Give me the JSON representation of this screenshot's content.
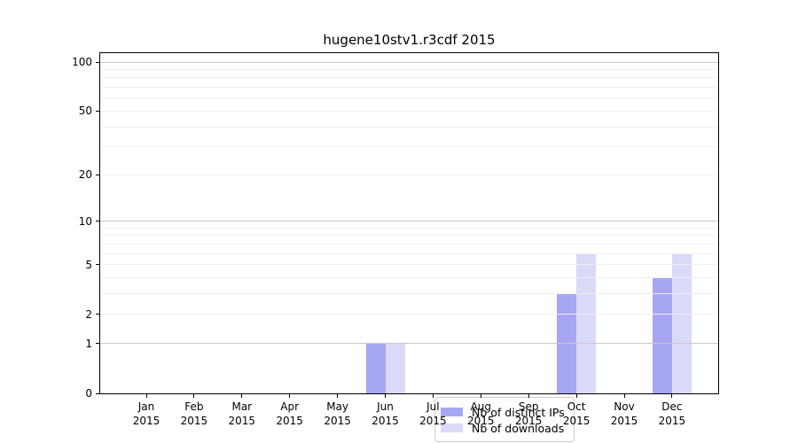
{
  "chart_data": {
    "type": "bar",
    "title": "hugene10stv1.r3cdf 2015",
    "categories": [
      "Jan",
      "Feb",
      "Mar",
      "Apr",
      "May",
      "Jun",
      "Jul",
      "Aug",
      "Sep",
      "Oct",
      "Nov",
      "Dec"
    ],
    "category_year": "2015",
    "series": [
      {
        "name": "Nb of distinct IPs",
        "color": "#9696f0",
        "values": [
          0,
          0,
          0,
          0,
          0,
          1,
          0,
          0,
          0,
          3,
          0,
          4
        ]
      },
      {
        "name": "Nb of downloads",
        "color": "#d2d2f7",
        "values": [
          0,
          0,
          0,
          0,
          0,
          1,
          0,
          0,
          0,
          6,
          0,
          6
        ]
      }
    ],
    "bar_opacity": 0.85,
    "y_axis": {
      "scale": "log1p",
      "ticks": [
        100,
        50,
        20,
        10,
        5,
        2,
        1,
        0
      ],
      "decade_gridlines": [
        100,
        10,
        1
      ],
      "light_gridlines": [
        90,
        80,
        70,
        60,
        50,
        40,
        30,
        20,
        9,
        8,
        7,
        6,
        5,
        4,
        3,
        2
      ],
      "range": [
        0,
        100
      ]
    },
    "legend": {
      "position": "bottom-center"
    },
    "grid": true,
    "colors": {
      "axis": "#000000",
      "decade_grid": "#c9c9c9",
      "light_grid": "#efefef",
      "legend_border": "#cccccc"
    }
  }
}
